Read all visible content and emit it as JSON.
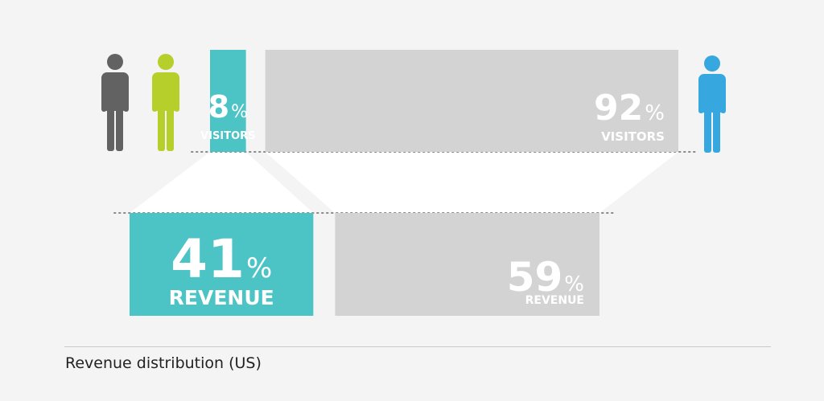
{
  "chart_data": {
    "type": "bar",
    "caption": "Revenue distribution (US)",
    "unit": "%",
    "visitors": [
      {
        "value": 8,
        "label": "VISITORS",
        "color": "#4cc4c6"
      },
      {
        "value": 92,
        "label": "VISITORS",
        "color": "#d3d3d3"
      }
    ],
    "revenue": [
      {
        "value": 41,
        "label": "REVENUE",
        "color": "#4cc4c6"
      },
      {
        "value": 59,
        "label": "REVENUE",
        "color": "#d3d3d3"
      }
    ]
  },
  "figures": [
    {
      "icon": "person-icon",
      "color": "#626262"
    },
    {
      "icon": "person-icon",
      "color": "#b7cf2a"
    },
    {
      "icon": "person-icon",
      "color": "#36a8df"
    }
  ],
  "colors": {
    "connector": "#ffffff",
    "dotted_line": "#8a8a8a",
    "value_text": "#ffffff"
  }
}
